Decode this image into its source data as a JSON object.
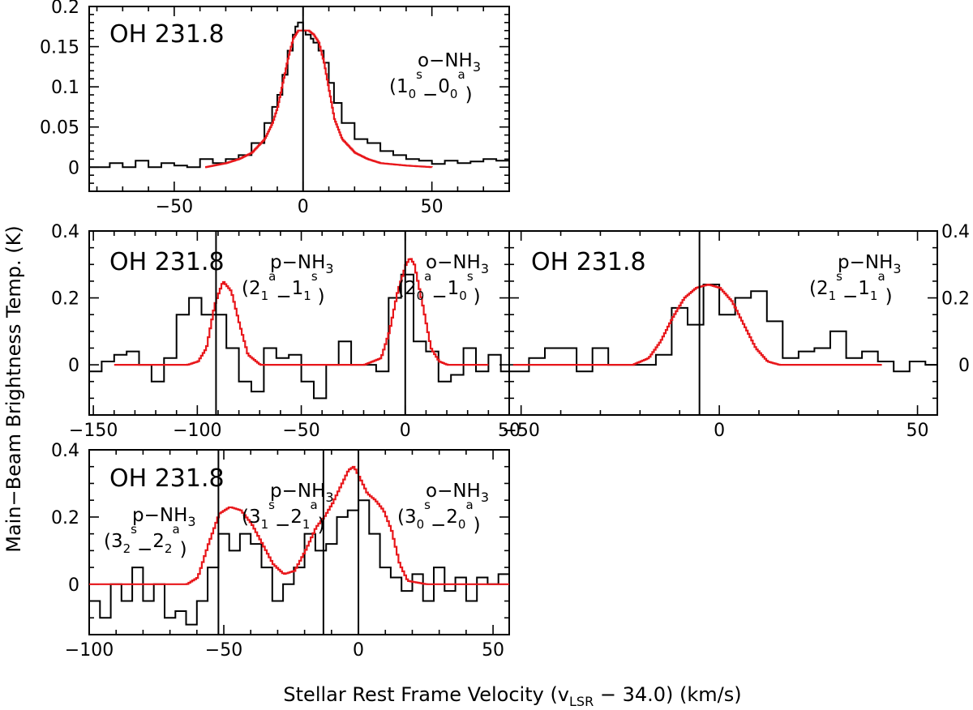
{
  "figure": {
    "ylabel": "Main−Beam Brightness Temp. (K)",
    "xlabel_prefix": "Stellar Rest Frame Velocity (v",
    "xlabel_sub": "LSR",
    "xlabel_suffix": " − 34.0) (km/s)"
  },
  "chart_data": [
    {
      "id": "p1",
      "type": "line",
      "source": "OH 231.8",
      "xlim": [
        -83,
        80
      ],
      "ylim": [
        -0.03,
        0.2
      ],
      "xticks_major": [
        -50,
        0,
        50
      ],
      "xtick_labels": [
        "−50",
        "0",
        "50"
      ],
      "yticks_major": [
        0,
        0.05,
        0.1,
        0.15,
        0.2
      ],
      "ytick_labels": [
        "0",
        "0.05",
        "0.1",
        "0.15",
        "0.2"
      ],
      "vlines": [
        0
      ],
      "transitions": [
        {
          "species": "o−NH",
          "sub": "3",
          "q1": "1",
          "s1": "0",
          "p1": "s",
          "q2": "0",
          "s2": "0",
          "p2": "a",
          "dash": "−"
        }
      ],
      "series": [
        {
          "name": "observed",
          "style": "black histogram",
          "x": [
            -83,
            -75,
            -70,
            -65,
            -60,
            -55,
            -50,
            -45,
            -40,
            -35,
            -30,
            -25,
            -20,
            -15,
            -12,
            -10,
            -8,
            -6,
            -4,
            -3,
            -2,
            -1,
            0,
            1,
            2,
            3,
            4,
            6,
            8,
            10,
            12,
            15,
            20,
            25,
            30,
            35,
            40,
            45,
            50,
            55,
            60,
            65,
            70,
            75,
            80
          ],
          "values": [
            0.0,
            0.005,
            0.0,
            0.008,
            0.0,
            0.005,
            0.002,
            0.0,
            0.01,
            0.005,
            0.01,
            0.015,
            0.03,
            0.055,
            0.075,
            0.09,
            0.115,
            0.145,
            0.165,
            0.175,
            0.18,
            0.18,
            0.17,
            0.165,
            0.165,
            0.16,
            0.155,
            0.145,
            0.13,
            0.105,
            0.08,
            0.055,
            0.035,
            0.03,
            0.02,
            0.015,
            0.01,
            0.008,
            0.004,
            0.008,
            0.005,
            0.007,
            0.01,
            0.008,
            0.015
          ]
        },
        {
          "name": "model",
          "style": "red",
          "x": [
            -38,
            -30,
            -25,
            -20,
            -15,
            -12,
            -10,
            -8,
            -6,
            -4,
            -2,
            0,
            2,
            4,
            6,
            8,
            10,
            12,
            15,
            20,
            25,
            30,
            40,
            50
          ],
          "values": [
            0.0,
            0.005,
            0.01,
            0.018,
            0.035,
            0.055,
            0.075,
            0.105,
            0.135,
            0.16,
            0.17,
            0.17,
            0.17,
            0.165,
            0.155,
            0.13,
            0.095,
            0.06,
            0.035,
            0.018,
            0.01,
            0.005,
            0.002,
            0.0
          ]
        }
      ]
    },
    {
      "id": "p2",
      "type": "line",
      "source": "OH 231.8",
      "xlim": [
        -152,
        50
      ],
      "ylim": [
        -0.15,
        0.4
      ],
      "xticks_major": [
        -150,
        -100,
        -50,
        0,
        50
      ],
      "xtick_labels": [
        "−150",
        "−100",
        "−50",
        "0",
        "50"
      ],
      "yticks_major": [
        0,
        0.2,
        0.4
      ],
      "ytick_labels": [
        "0",
        "0.2",
        "0.4"
      ],
      "vlines": [
        -91,
        0
      ],
      "transitions": [
        {
          "species": "p−NH",
          "sub": "3",
          "q1": "2",
          "s1": "1",
          "p1": "a",
          "q2": "1",
          "s2": "1",
          "p2": "s",
          "dash": "−"
        },
        {
          "species": "o−NH",
          "sub": "3",
          "q1": "2",
          "s1": "0",
          "p1": "a",
          "q2": "1",
          "s2": "0",
          "p2": "s",
          "dash": "−"
        }
      ],
      "series": [
        {
          "name": "observed",
          "style": "black histogram",
          "x": [
            -152,
            -146,
            -140,
            -134,
            -128,
            -122,
            -116,
            -110,
            -104,
            -98,
            -92,
            -86,
            -80,
            -74,
            -68,
            -62,
            -56,
            -50,
            -44,
            -38,
            -32,
            -26,
            -20,
            -14,
            -8,
            -2,
            4,
            10,
            16,
            22,
            28,
            34,
            40,
            46,
            50
          ],
          "values": [
            -0.02,
            0.01,
            0.03,
            0.04,
            0.0,
            -0.05,
            0.02,
            0.15,
            0.2,
            0.15,
            0.15,
            0.05,
            -0.05,
            -0.08,
            0.05,
            0.02,
            0.03,
            -0.05,
            -0.1,
            0.0,
            0.07,
            0.0,
            0.0,
            -0.02,
            0.2,
            0.27,
            0.07,
            0.04,
            -0.05,
            -0.03,
            0.05,
            -0.02,
            0.03,
            -0.02,
            -0.02
          ]
        },
        {
          "name": "model",
          "style": "red",
          "x": [
            -140,
            -120,
            -105,
            -100,
            -96,
            -92,
            -88,
            -84,
            -80,
            -76,
            -70,
            -60,
            -40,
            -20,
            -12,
            -8,
            -4,
            0,
            2,
            4,
            8,
            12,
            16,
            20,
            30,
            40
          ],
          "values": [
            0.0,
            0.0,
            0.0,
            0.01,
            0.05,
            0.18,
            0.25,
            0.22,
            0.12,
            0.03,
            0.0,
            0.0,
            0.0,
            0.0,
            0.02,
            0.1,
            0.22,
            0.3,
            0.32,
            0.3,
            0.18,
            0.05,
            0.01,
            0.0,
            0.0,
            0.0
          ]
        }
      ]
    },
    {
      "id": "p3",
      "type": "line",
      "source": "OH 231.8",
      "xlim": [
        -53,
        55
      ],
      "ylim": [
        -0.15,
        0.4
      ],
      "xticks_major": [
        -50,
        0,
        50
      ],
      "xtick_labels": [
        "−50",
        "0",
        "50"
      ],
      "yticks_major": [
        0,
        0.2,
        0.4
      ],
      "ytick_labels": [
        "0",
        "0.2",
        "0.4"
      ],
      "vlines": [
        -5
      ],
      "transitions": [
        {
          "species": "p−NH",
          "sub": "3",
          "q1": "2",
          "s1": "1",
          "p1": "s",
          "q2": "1",
          "s2": "1",
          "p2": "a",
          "dash": "−"
        }
      ],
      "series": [
        {
          "name": "observed",
          "style": "black histogram",
          "x": [
            -53,
            -48,
            -44,
            -40,
            -36,
            -32,
            -28,
            -24,
            -20,
            -16,
            -12,
            -8,
            -4,
            0,
            4,
            8,
            12,
            16,
            20,
            24,
            28,
            32,
            36,
            40,
            44,
            48,
            52,
            55
          ],
          "values": [
            -0.02,
            0.02,
            0.05,
            0.05,
            -0.02,
            0.05,
            0.0,
            0.0,
            0.0,
            0.03,
            0.17,
            0.12,
            0.24,
            0.15,
            0.2,
            0.22,
            0.13,
            0.02,
            0.04,
            0.05,
            0.1,
            0.02,
            0.04,
            0.01,
            -0.02,
            0.01,
            0.0,
            0.0
          ]
        },
        {
          "name": "model",
          "style": "red",
          "x": [
            -52,
            -40,
            -30,
            -22,
            -18,
            -15,
            -12,
            -9,
            -6,
            -3,
            0,
            3,
            6,
            9,
            12,
            15,
            20,
            30,
            41
          ],
          "values": [
            0.0,
            0.0,
            0.0,
            0.0,
            0.02,
            0.07,
            0.14,
            0.2,
            0.23,
            0.24,
            0.23,
            0.19,
            0.12,
            0.05,
            0.01,
            0.0,
            0.0,
            0.0,
            0.0
          ]
        }
      ]
    },
    {
      "id": "p4",
      "type": "line",
      "source": "OH 231.8",
      "xlim": [
        -100,
        56
      ],
      "ylim": [
        -0.15,
        0.4
      ],
      "xticks_major": [
        -100,
        -50,
        0,
        50
      ],
      "xtick_labels": [
        "−100",
        "−50",
        "0",
        "50"
      ],
      "yticks_major": [
        0,
        0.2,
        0.4
      ],
      "ytick_labels": [
        "0",
        "0.2",
        "0.4"
      ],
      "vlines": [
        -52,
        -13,
        0
      ],
      "transitions": [
        {
          "species": "p−NH",
          "sub": "3",
          "q1": "3",
          "s1": "2",
          "p1": "s",
          "q2": "2",
          "s2": "2",
          "p2": "a",
          "dash": "−"
        },
        {
          "species": "p−NH",
          "sub": "3",
          "q1": "3",
          "s1": "1",
          "p1": "s",
          "q2": "2",
          "s2": "1",
          "p2": "a",
          "dash": "−"
        },
        {
          "species": "o−NH",
          "sub": "3",
          "q1": "3",
          "s1": "0",
          "p1": "s",
          "q2": "2",
          "s2": "0",
          "p2": "a",
          "dash": "−"
        }
      ],
      "series": [
        {
          "name": "observed",
          "style": "black histogram",
          "x": [
            -100,
            -96,
            -92,
            -88,
            -84,
            -80,
            -76,
            -72,
            -68,
            -64,
            -60,
            -56,
            -52,
            -48,
            -44,
            -40,
            -36,
            -32,
            -28,
            -24,
            -20,
            -16,
            -12,
            -8,
            -4,
            0,
            4,
            8,
            12,
            16,
            20,
            24,
            28,
            32,
            36,
            40,
            44,
            48,
            52,
            56
          ],
          "values": [
            -0.05,
            -0.1,
            0.0,
            -0.05,
            0.05,
            -0.05,
            0.0,
            -0.1,
            -0.08,
            -0.12,
            -0.05,
            0.05,
            0.15,
            0.1,
            0.15,
            0.12,
            0.05,
            -0.05,
            0.0,
            0.05,
            0.15,
            0.1,
            0.12,
            0.2,
            0.22,
            0.25,
            0.15,
            0.05,
            0.02,
            -0.02,
            0.03,
            -0.05,
            0.05,
            -0.02,
            0.02,
            -0.05,
            0.02,
            0.0,
            0.03,
            -0.08
          ]
        },
        {
          "name": "model",
          "style": "red",
          "x": [
            -100,
            -80,
            -70,
            -64,
            -60,
            -56,
            -52,
            -48,
            -44,
            -40,
            -36,
            -32,
            -28,
            -24,
            -20,
            -16,
            -13,
            -10,
            -7,
            -4,
            -2,
            0,
            3,
            6,
            9,
            12,
            15,
            18,
            25,
            40,
            56
          ],
          "values": [
            0.0,
            0.0,
            0.0,
            0.0,
            0.02,
            0.12,
            0.21,
            0.23,
            0.22,
            0.18,
            0.12,
            0.06,
            0.03,
            0.04,
            0.1,
            0.17,
            0.2,
            0.24,
            0.29,
            0.34,
            0.35,
            0.32,
            0.27,
            0.25,
            0.22,
            0.16,
            0.06,
            0.01,
            0.0,
            0.0,
            0.0
          ]
        }
      ]
    }
  ]
}
